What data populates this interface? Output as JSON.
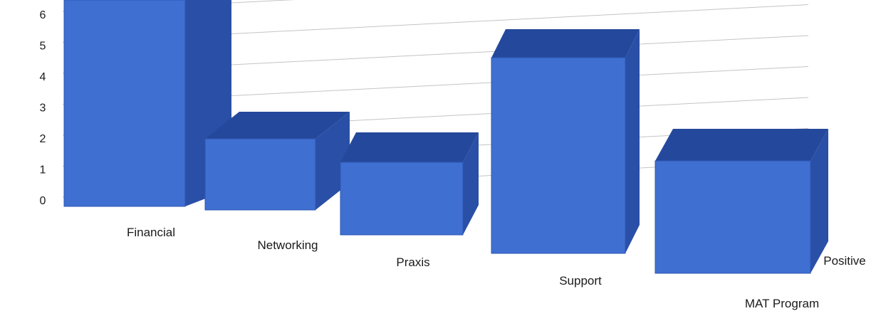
{
  "chart_data": {
    "type": "bar",
    "title": "",
    "xlabel": "",
    "ylabel": "",
    "categories": [
      "Financial",
      "Networking",
      "Praxis",
      "Support",
      "MAT Program",
      "Positive"
    ],
    "values": [
      6,
      2,
      2,
      5,
      3,
      0
    ],
    "ylim": [
      0,
      6
    ],
    "yticks": [
      "0",
      "1",
      "2",
      "3",
      "4",
      "5",
      "6"
    ],
    "grid": true,
    "style": "3d",
    "legend": "none",
    "colors": {
      "bar_front": "#3f6fd1",
      "bar_side": "#2a4fa6",
      "bar_top": "#24489b",
      "grid": "#c4c4c4"
    }
  }
}
